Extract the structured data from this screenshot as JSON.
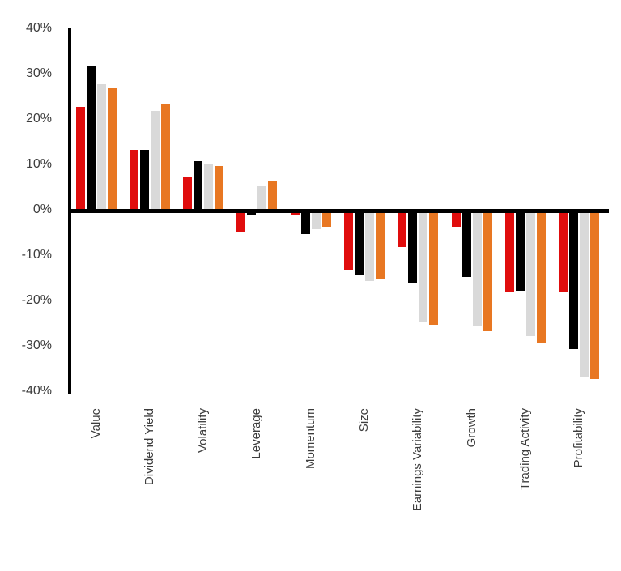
{
  "chart_data": {
    "type": "bar",
    "title": "",
    "xlabel": "",
    "ylabel": "",
    "ylim": [
      -40,
      40
    ],
    "grid": false,
    "legend_position": "none",
    "yticks": [
      40,
      30,
      20,
      10,
      0,
      -10,
      -20,
      -30,
      -40
    ],
    "ytick_labels": [
      "40%",
      "30%",
      "20%",
      "10%",
      "0%",
      "-10%",
      "-20%",
      "-30%",
      "-40%"
    ],
    "categories": [
      "Value",
      "Dividend Yield",
      "Volatility",
      "Leverage",
      "Momentum",
      "Size",
      "Earnings Variability",
      "Growth",
      "Trading Activity",
      "Profitability"
    ],
    "series": [
      {
        "name": "series-1-red",
        "color": "#e00d0d",
        "values": [
          23,
          13.5,
          7.5,
          -4.5,
          -1,
          -13,
          -8,
          -3.5,
          -18,
          -18
        ]
      },
      {
        "name": "series-2-black",
        "color": "#000000",
        "values": [
          32,
          13.5,
          11,
          -1,
          -5,
          -14,
          -16,
          -14.5,
          -17.5,
          -30.5
        ]
      },
      {
        "name": "series-3-gray",
        "color": "#d9d9d9",
        "values": [
          28,
          22,
          10.5,
          5.5,
          -4,
          -15.5,
          -24.5,
          -25.5,
          -27.5,
          -36.5
        ]
      },
      {
        "name": "series-4-orange",
        "color": "#e87722",
        "values": [
          27,
          23.5,
          10,
          6.5,
          -3.5,
          -15,
          -25,
          -26.5,
          -29,
          -37
        ]
      }
    ]
  },
  "colors": {
    "axis": "#000000",
    "label_text": "#3d3d3d",
    "background": "#ffffff"
  }
}
